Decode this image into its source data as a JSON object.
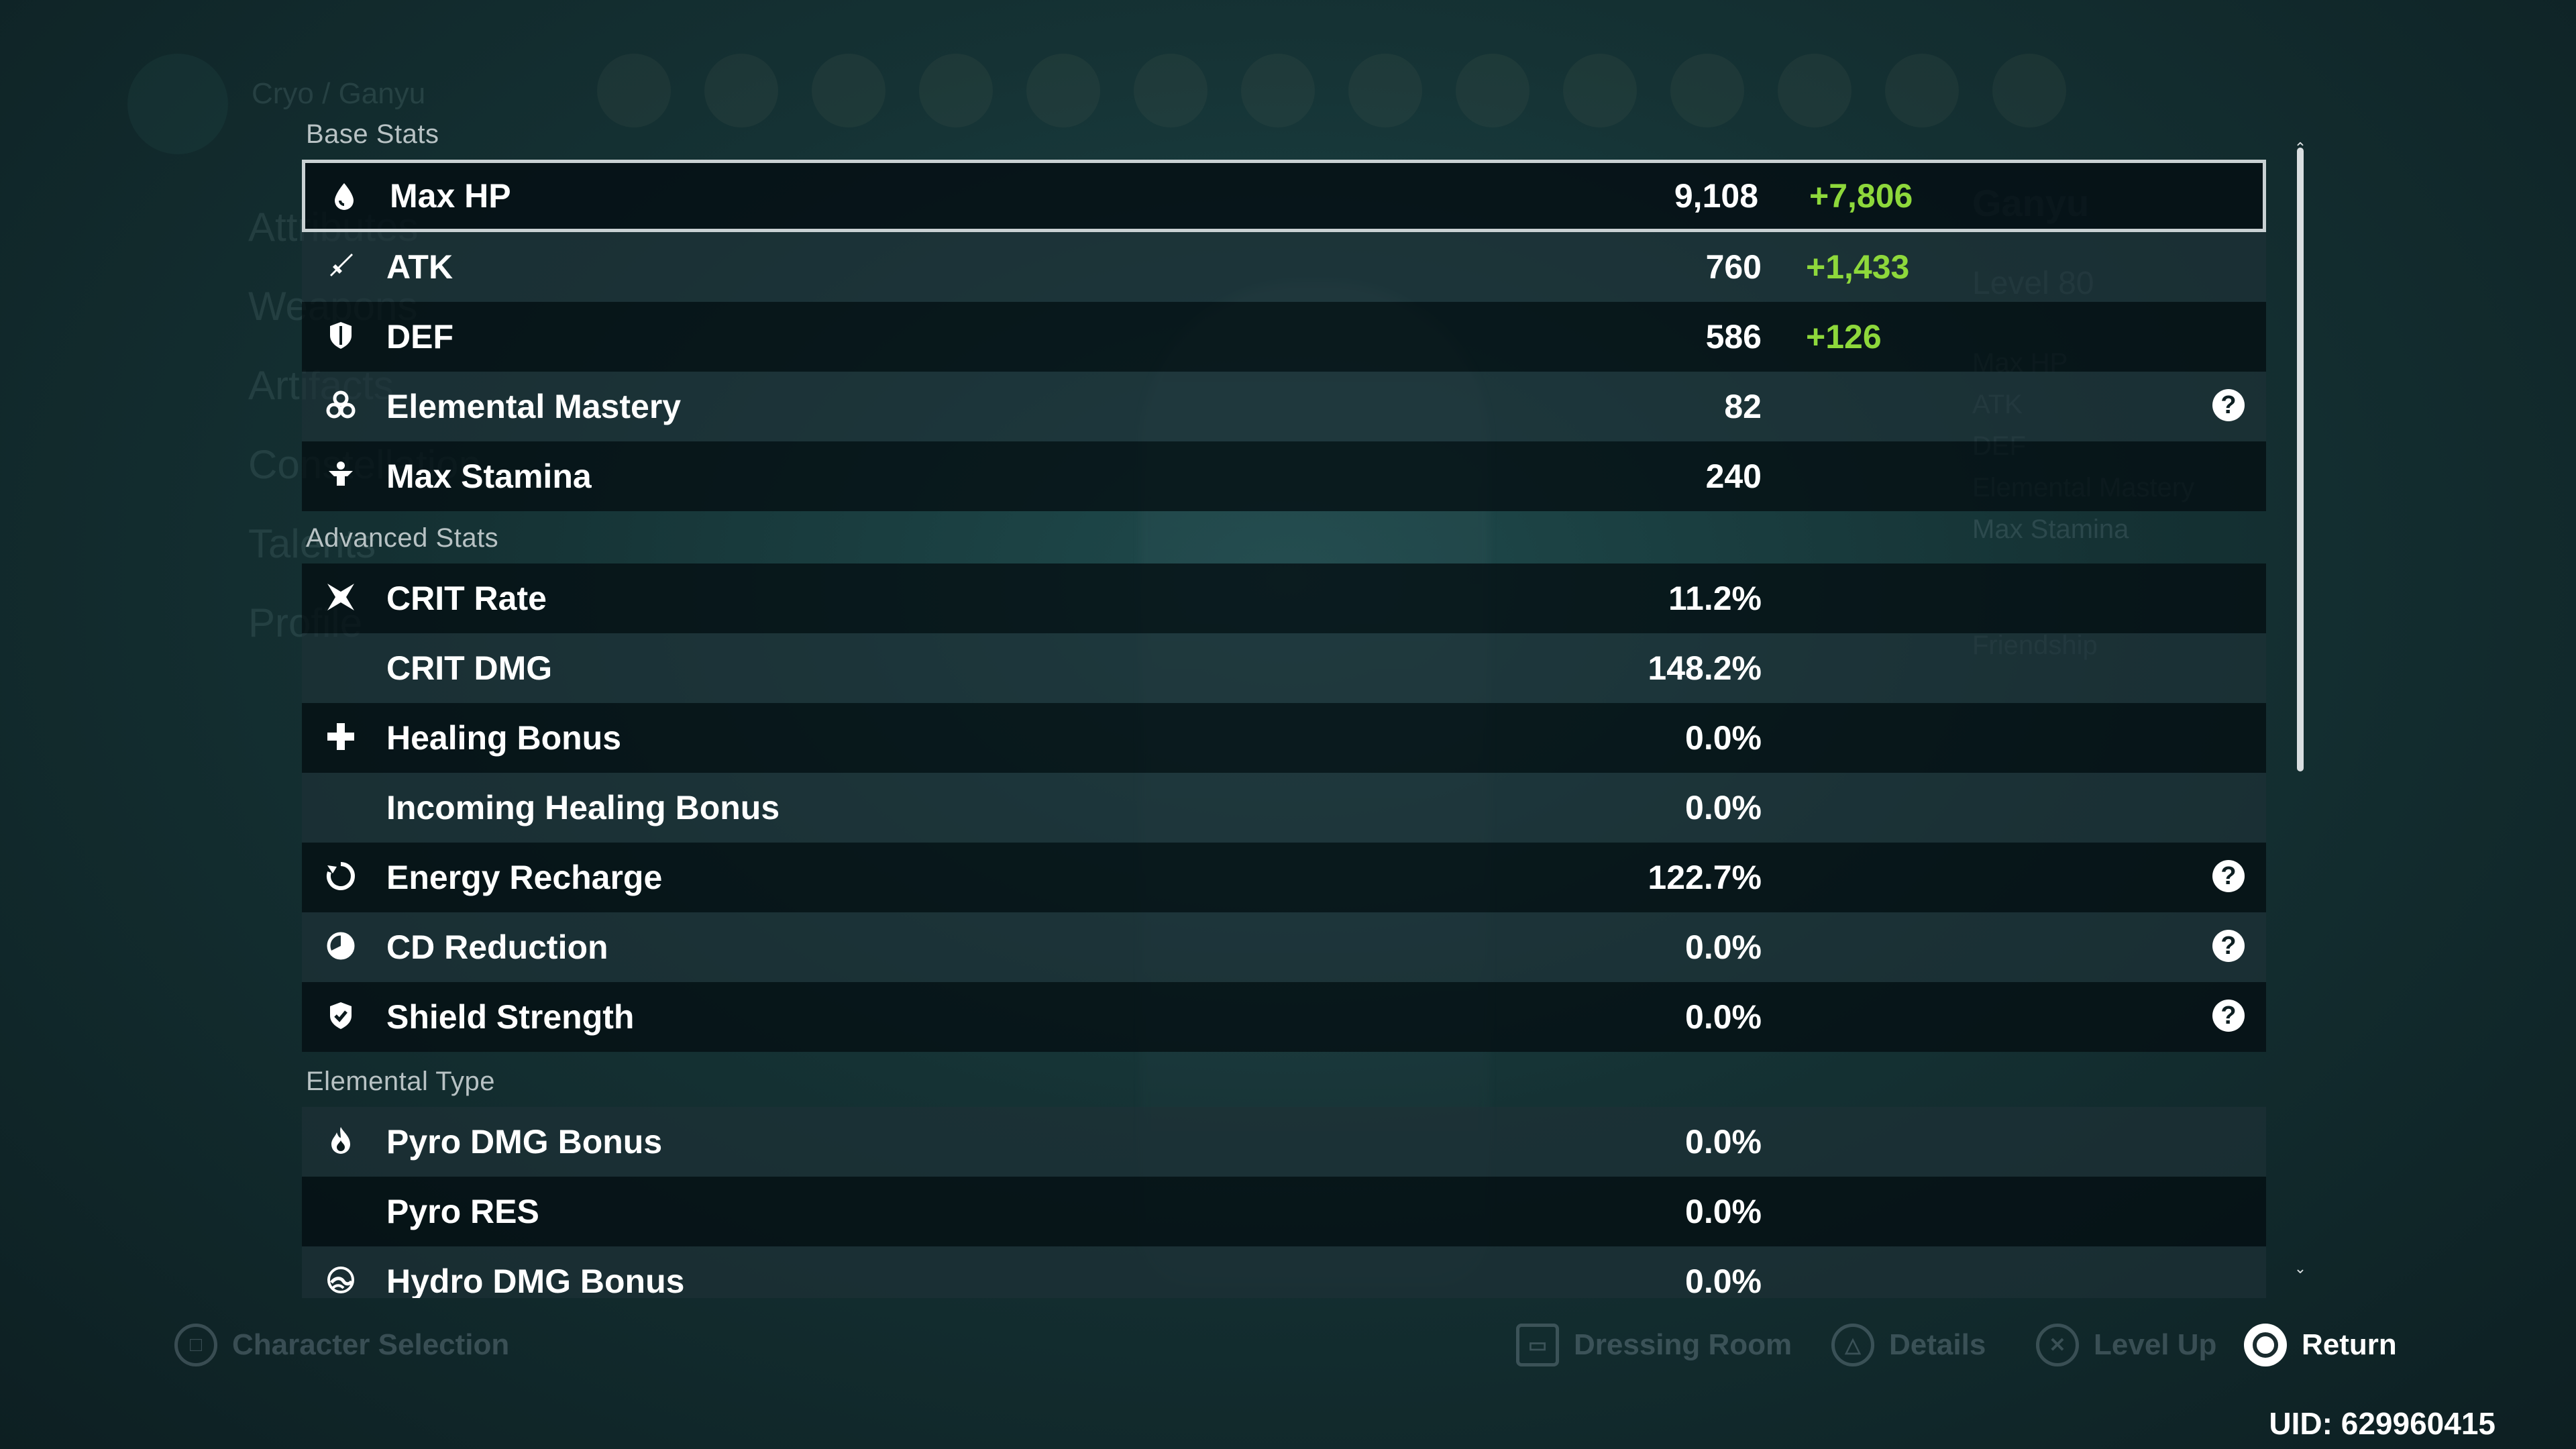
{
  "background": {
    "header_name": "Cryo / Ganyu",
    "right_title": "Ganyu",
    "right_level": "Level 80",
    "right_stats": [
      "Max HP",
      "ATK",
      "DEF",
      "Elemental Mastery",
      "Max Stamina"
    ],
    "right_friendship": "Friendship",
    "left_menu": [
      "Attributes",
      "Weapons",
      "Artifacts",
      "Constellation",
      "Talents",
      "Profile"
    ]
  },
  "sections": {
    "base": "Base Stats",
    "advanced": "Advanced Stats",
    "elemental": "Elemental Type"
  },
  "base_stats": [
    {
      "icon": "hp-drop-icon",
      "label": "Max HP",
      "value": "9,108",
      "bonus": "+7,806",
      "help": false
    },
    {
      "icon": "sword-icon",
      "label": "ATK",
      "value": "760",
      "bonus": "+1,433",
      "help": false
    },
    {
      "icon": "shield-icon",
      "label": "DEF",
      "value": "586",
      "bonus": "+126",
      "help": false
    },
    {
      "icon": "elemental-mastery-icon",
      "label": "Elemental Mastery",
      "value": "82",
      "bonus": "",
      "help": true
    },
    {
      "icon": "stamina-icon",
      "label": "Max Stamina",
      "value": "240",
      "bonus": "",
      "help": false
    }
  ],
  "advanced_stats": [
    {
      "icon": "crit-icon",
      "label": "CRIT Rate",
      "value": "11.2%",
      "help": false
    },
    {
      "icon": "",
      "label": "CRIT DMG",
      "value": "148.2%",
      "help": false
    },
    {
      "icon": "healing-cross-icon",
      "label": "Healing Bonus",
      "value": "0.0%",
      "help": false
    },
    {
      "icon": "",
      "label": "Incoming Healing Bonus",
      "value": "0.0%",
      "help": false
    },
    {
      "icon": "energy-recharge-icon",
      "label": "Energy Recharge",
      "value": "122.7%",
      "help": true
    },
    {
      "icon": "cd-reduction-icon",
      "label": "CD Reduction",
      "value": "0.0%",
      "help": true
    },
    {
      "icon": "shield-strength-icon",
      "label": "Shield Strength",
      "value": "0.0%",
      "help": true
    }
  ],
  "elemental_stats": [
    {
      "icon": "pyro-icon",
      "label": "Pyro DMG Bonus",
      "value": "0.0%"
    },
    {
      "icon": "",
      "label": "Pyro RES",
      "value": "0.0%"
    },
    {
      "icon": "hydro-icon",
      "label": "Hydro DMG Bonus",
      "value": "0.0%"
    }
  ],
  "footer": {
    "character_selection": "Character Selection",
    "dressing_room": "Dressing Room",
    "details": "Details",
    "level_up": "Level Up",
    "return": "Return",
    "uid": "UID: 629960415"
  },
  "colors": {
    "bonus_green": "#8ed83b",
    "row_dark": "#040e12",
    "row_light": "#1e3036"
  }
}
